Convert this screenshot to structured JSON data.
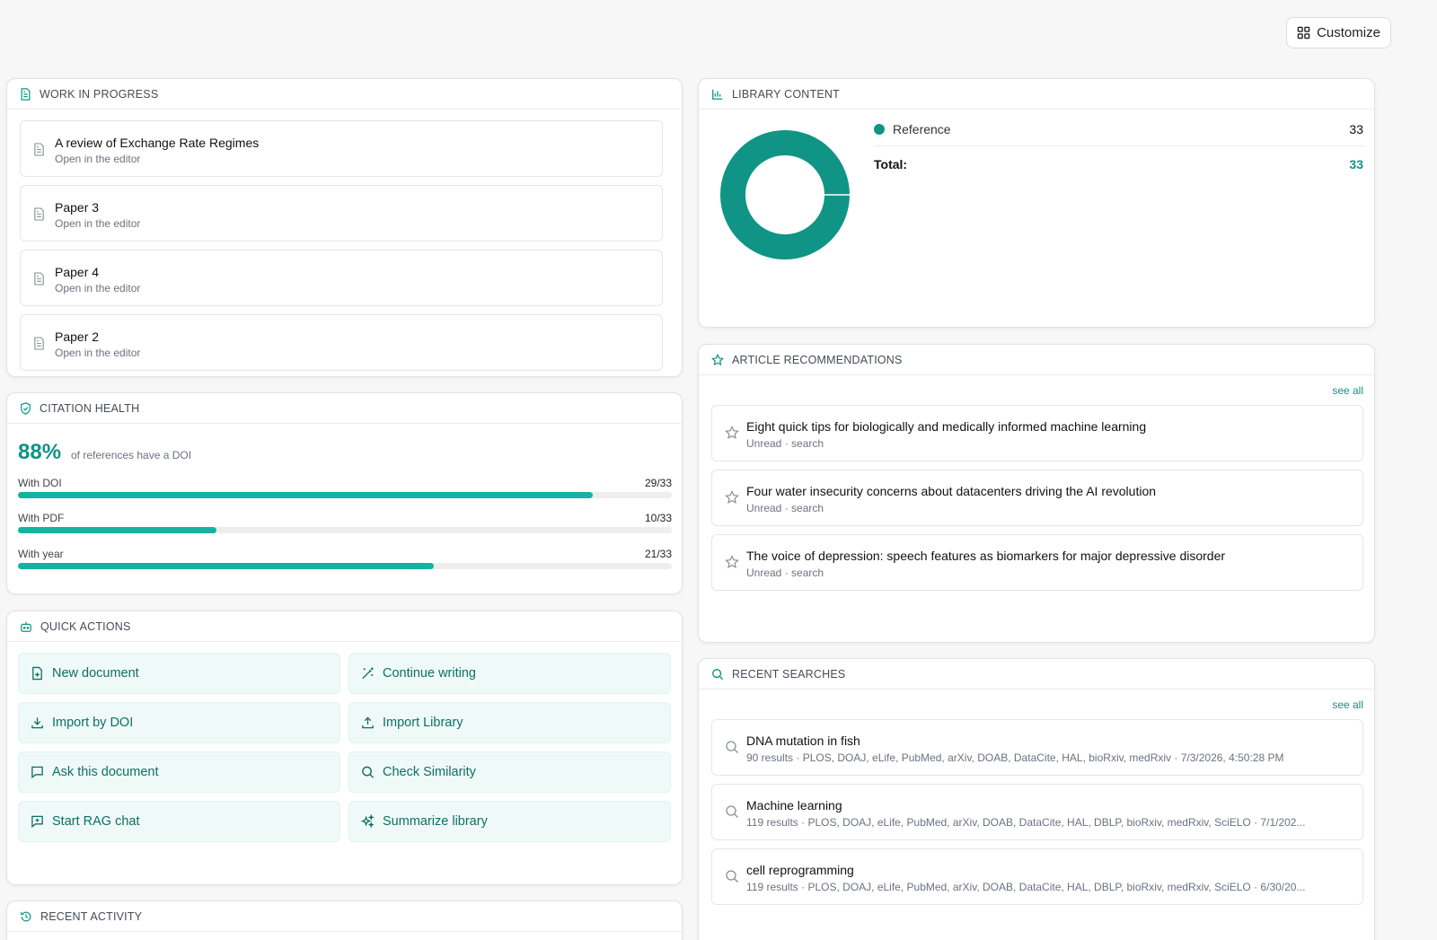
{
  "toolbar": {
    "customize_label": "Customize"
  },
  "work_in_progress": {
    "title": "WORK IN PROGRESS",
    "items": [
      {
        "title": "A review of Exchange Rate Regimes",
        "subtitle": "Open in the editor"
      },
      {
        "title": "Paper 3",
        "subtitle": "Open in the editor"
      },
      {
        "title": "Paper 4",
        "subtitle": "Open in the editor"
      },
      {
        "title": "Paper 2",
        "subtitle": "Open in the editor"
      }
    ]
  },
  "citation_health": {
    "title": "CITATION HEALTH",
    "percent": "88%",
    "percent_label": "of references have a DOI",
    "bars": [
      {
        "label": "With DOI",
        "count": "29/33",
        "fraction": 0.879
      },
      {
        "label": "With PDF",
        "count": "10/33",
        "fraction": 0.303
      },
      {
        "label": "With year",
        "count": "21/33",
        "fraction": 0.636
      }
    ]
  },
  "quick_actions": {
    "title": "QUICK ACTIONS",
    "buttons": [
      {
        "label": "New document",
        "icon": "new-file-icon"
      },
      {
        "label": "Continue writing",
        "icon": "magic-wand-icon"
      },
      {
        "label": "Import by DOI",
        "icon": "download-icon"
      },
      {
        "label": "Import Library",
        "icon": "upload-icon"
      },
      {
        "label": "Ask this document",
        "icon": "chat-bubble-icon"
      },
      {
        "label": "Check Similarity",
        "icon": "search-icon"
      },
      {
        "label": "Start RAG chat",
        "icon": "chat-plus-icon"
      },
      {
        "label": "Summarize library",
        "icon": "sparkles-icon"
      }
    ]
  },
  "recent_activity": {
    "title": "RECENT ACTIVITY"
  },
  "library_content": {
    "title": "LIBRARY CONTENT",
    "legend": [
      {
        "label": "Reference",
        "value": "33",
        "color": "#0f9485"
      }
    ],
    "total_label": "Total:",
    "total_value": "33"
  },
  "article_recommendations": {
    "title": "ARTICLE RECOMMENDATIONS",
    "see_all": "see all",
    "items": [
      {
        "title": "Eight quick tips for biologically and medically informed machine learning",
        "subtitle": "Unread · search"
      },
      {
        "title": "Four water insecurity concerns about datacenters driving the AI revolution",
        "subtitle": "Unread · search"
      },
      {
        "title": "The voice of depression: speech features as biomarkers for major depressive disorder",
        "subtitle": "Unread · search"
      }
    ]
  },
  "recent_searches": {
    "title": "RECENT SEARCHES",
    "see_all": "see all",
    "items": [
      {
        "title": "DNA mutation in fish",
        "subtitle": "90 results · PLOS, DOAJ, eLife, PubMed, arXiv, DOAB, DataCite, HAL, bioRxiv, medRxiv · 7/3/2026, 4:50:28 PM"
      },
      {
        "title": "Machine learning",
        "subtitle": "119 results · PLOS, DOAJ, eLife, PubMed, arXiv, DOAB, DataCite, HAL, DBLP, bioRxiv, medRxiv, SciELO · 7/1/202..."
      },
      {
        "title": "cell reprogramming",
        "subtitle": "119 results · PLOS, DOAJ, eLife, PubMed, arXiv, DOAB, DataCite, HAL, DBLP, bioRxiv, medRxiv, SciELO · 6/30/20..."
      }
    ]
  },
  "colors": {
    "accent": "#0f9485",
    "bar_fill": "#13b3a1",
    "action_bg": "#effaf8"
  }
}
